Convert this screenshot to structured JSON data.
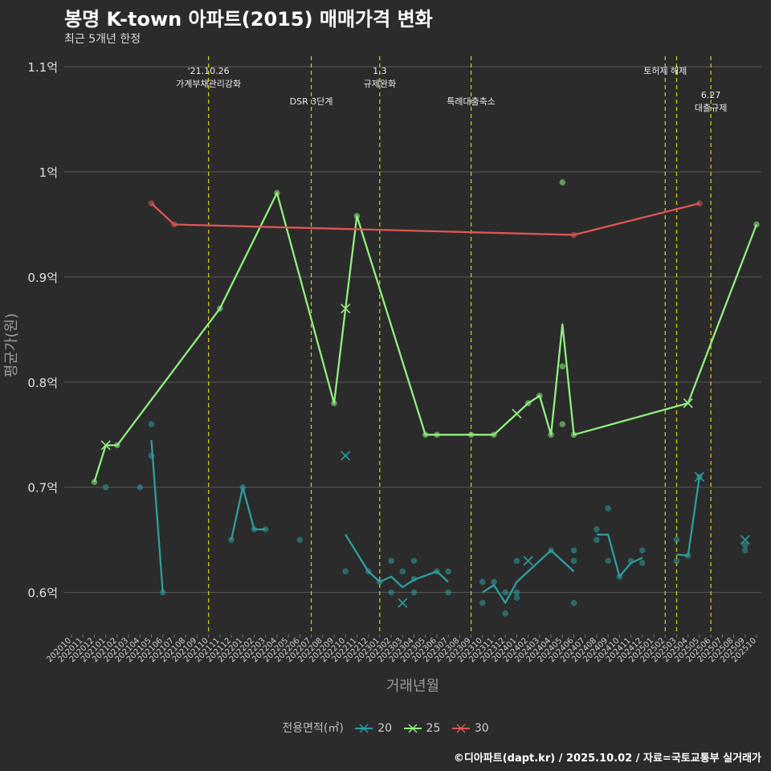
{
  "title": "봉명 K-town 아파트(2015) 매매가격 변화",
  "subtitle": "최근 5개년 한정",
  "caption": "©디아파트(dapt.kr) / 2025.10.02 / 자료=국토교통부 실거래가",
  "chart_data": {
    "type": "line",
    "xlabel": "거래년월",
    "ylabel": "평균가(원)",
    "legend_title": "전용면적(㎡)",
    "legend_position": "bottom",
    "grid": true,
    "ylim": [
      0.56,
      1.11
    ],
    "y_ticks": [
      0.6,
      0.7,
      0.8,
      0.9,
      1.0,
      1.1
    ],
    "y_tick_labels": [
      "0.6억",
      "0.7억",
      "0.8억",
      "0.9억",
      "1억",
      "1.1억"
    ],
    "x_ticks": [
      "202010",
      "202011",
      "202012",
      "202101",
      "202102",
      "202103",
      "202104",
      "202105",
      "202106",
      "202107",
      "202108",
      "202109",
      "202110",
      "202111",
      "202112",
      "202201",
      "202202",
      "202203",
      "202204",
      "202205",
      "202206",
      "202207",
      "202208",
      "202209",
      "202210",
      "202211",
      "202212",
      "202301",
      "202302",
      "202303",
      "202304",
      "202305",
      "202306",
      "202307",
      "202308",
      "202309",
      "202310",
      "202311",
      "202312",
      "202401",
      "202402",
      "202403",
      "202404",
      "202405",
      "202406",
      "202407",
      "202408",
      "202409",
      "202410",
      "202411",
      "202412",
      "202501",
      "202502",
      "202503",
      "202504",
      "202505",
      "202506",
      "202507",
      "202508",
      "202509",
      "202510"
    ],
    "colors": {
      "20": "#2e9e9e",
      "25": "#90ee80",
      "30": "#e05555",
      "event": "#d4d414"
    },
    "events": [
      {
        "x": "202110",
        "label": "'21.10.26\n가계부채관리강화",
        "level": 0
      },
      {
        "x": "202207",
        "label": "DSR 3단계",
        "level": 1
      },
      {
        "x": "202301",
        "label": "1.3\n규제완화",
        "level": 0
      },
      {
        "x": "202309",
        "label": "특례대출축소",
        "level": 1
      },
      {
        "x": "202502",
        "label": "토허제 해제",
        "level": 0
      },
      {
        "x": "202503",
        "label": "",
        "level": 0
      },
      {
        "x": "202506",
        "label": "6.27\n대출규제",
        "level": 2
      }
    ],
    "series": [
      {
        "name": "20",
        "line": [
          [
            "202105",
            0.745
          ],
          [
            "202106",
            0.6
          ],
          null,
          [
            "202112",
            0.65
          ],
          [
            "202201",
            0.7
          ],
          [
            "202202",
            0.66
          ],
          [
            "202203",
            0.66
          ],
          null,
          [
            "202210",
            0.655
          ],
          [
            "202212",
            0.62
          ],
          [
            "202301",
            0.61
          ],
          [
            "202302",
            0.615
          ],
          [
            "202303",
            0.605
          ],
          [
            "202304",
            0.612
          ],
          [
            "202306",
            0.62
          ],
          [
            "202307",
            0.61
          ],
          null,
          [
            "202310",
            0.6
          ],
          [
            "202311",
            0.607
          ],
          [
            "202312",
            0.59
          ],
          [
            "202401",
            0.61
          ],
          [
            "202404",
            0.64
          ],
          [
            "202406",
            0.62
          ],
          null,
          [
            "202408",
            0.655
          ],
          [
            "202409",
            0.655
          ],
          [
            "202410",
            0.615
          ],
          [
            "202411",
            0.628
          ],
          [
            "202412",
            0.633
          ],
          null,
          [
            "202503",
            0.636
          ],
          [
            "202504",
            0.635
          ],
          [
            "202505",
            0.71
          ],
          null,
          [
            "202509",
            0.65
          ]
        ],
        "points": [
          [
            "202101",
            0.7
          ],
          [
            "202104",
            0.7
          ],
          [
            "202105",
            0.76
          ],
          [
            "202105",
            0.73
          ],
          [
            "202106",
            0.6
          ],
          [
            "202112",
            0.65
          ],
          [
            "202201",
            0.7
          ],
          [
            "202202",
            0.66
          ],
          [
            "202203",
            0.66
          ],
          [
            "202206",
            0.65
          ],
          [
            "202210",
            0.62
          ],
          [
            "202212",
            0.62
          ],
          [
            "202301",
            0.61
          ],
          [
            "202302",
            0.63
          ],
          [
            "202302",
            0.6
          ],
          [
            "202303",
            0.62
          ],
          [
            "202304",
            0.63
          ],
          [
            "202304",
            0.6
          ],
          [
            "202304",
            0.613
          ],
          [
            "202306",
            0.62
          ],
          [
            "202307",
            0.62
          ],
          [
            "202307",
            0.6
          ],
          [
            "202310",
            0.61
          ],
          [
            "202310",
            0.59
          ],
          [
            "202311",
            0.61
          ],
          [
            "202312",
            0.6
          ],
          [
            "202312",
            0.58
          ],
          [
            "202401",
            0.6
          ],
          [
            "202401",
            0.595
          ],
          [
            "202401",
            0.63
          ],
          [
            "202404",
            0.64
          ],
          [
            "202406",
            0.64
          ],
          [
            "202406",
            0.63
          ],
          [
            "202406",
            0.59
          ],
          [
            "202408",
            0.66
          ],
          [
            "202408",
            0.65
          ],
          [
            "202409",
            0.68
          ],
          [
            "202409",
            0.63
          ],
          [
            "202410",
            0.615
          ],
          [
            "202411",
            0.63
          ],
          [
            "202412",
            0.64
          ],
          [
            "202412",
            0.628
          ],
          [
            "202503",
            0.65
          ],
          [
            "202503",
            0.63
          ],
          [
            "202504",
            0.635
          ],
          [
            "202505",
            0.71
          ],
          [
            "202509",
            0.64
          ],
          [
            "202509",
            0.645
          ]
        ],
        "cancel_marks": [
          [
            "202210",
            0.73
          ],
          [
            "202303",
            0.59
          ],
          [
            "202402",
            0.63
          ],
          [
            "202505",
            0.71
          ],
          [
            "202509",
            0.65
          ]
        ]
      },
      {
        "name": "25",
        "line": [
          [
            "202012",
            0.705
          ],
          [
            "202101",
            0.74
          ],
          [
            "202102",
            0.74
          ],
          [
            "202111",
            0.87
          ],
          [
            "202204",
            0.98
          ],
          [
            "202209",
            0.78
          ],
          [
            "202210",
            0.87
          ],
          [
            "202211",
            0.958
          ],
          [
            "202305",
            0.75
          ],
          [
            "202306",
            0.75
          ],
          [
            "202309",
            0.75
          ],
          [
            "202311",
            0.75
          ],
          [
            "202401",
            0.77
          ],
          [
            "202402",
            0.78
          ],
          [
            "202403",
            0.787
          ],
          [
            "202404",
            0.75
          ],
          [
            "202405",
            0.855
          ],
          [
            "202406",
            0.75
          ],
          [
            "202504",
            0.78
          ],
          [
            "202510",
            0.95
          ]
        ],
        "points": [
          [
            "202012",
            0.705
          ],
          [
            "202102",
            0.74
          ],
          [
            "202111",
            0.87
          ],
          [
            "202204",
            0.98
          ],
          [
            "202209",
            0.78
          ],
          [
            "202211",
            0.958
          ],
          [
            "202305",
            0.75
          ],
          [
            "202306",
            0.75
          ],
          [
            "202309",
            0.75
          ],
          [
            "202311",
            0.75
          ],
          [
            "202402",
            0.78
          ],
          [
            "202403",
            0.787
          ],
          [
            "202404",
            0.75
          ],
          [
            "202405",
            0.99
          ],
          [
            "202405",
            0.815
          ],
          [
            "202405",
            0.76
          ],
          [
            "202406",
            0.75
          ],
          [
            "202510",
            0.95
          ]
        ],
        "cancel_marks": [
          [
            "202101",
            0.74
          ],
          [
            "202210",
            0.87
          ],
          [
            "202401",
            0.77
          ],
          [
            "202504",
            0.78
          ]
        ]
      },
      {
        "name": "30",
        "line": [
          [
            "202105",
            0.97
          ],
          [
            "202107",
            0.95
          ],
          [
            "202406",
            0.94
          ],
          [
            "202505",
            0.97
          ]
        ],
        "points": [
          [
            "202105",
            0.97
          ],
          [
            "202107",
            0.95
          ],
          [
            "202406",
            0.94
          ],
          [
            "202505",
            0.97
          ]
        ],
        "cancel_marks": []
      }
    ]
  }
}
